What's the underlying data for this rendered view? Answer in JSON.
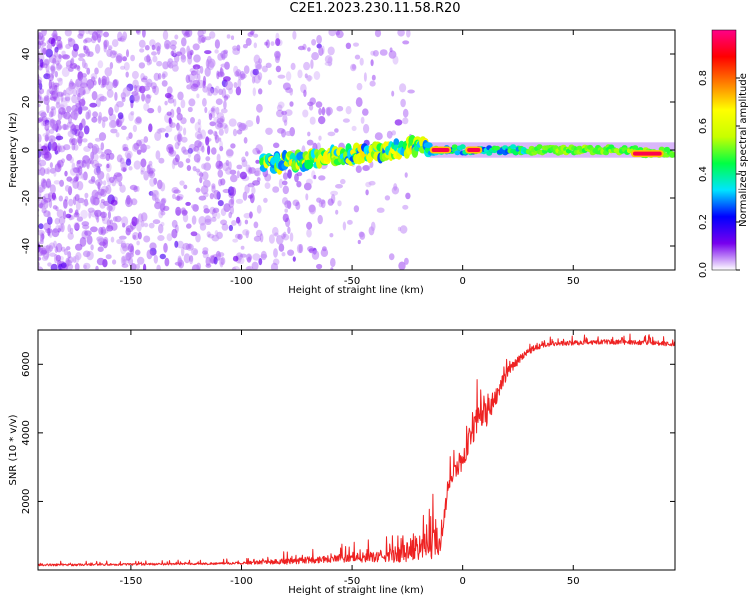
{
  "figure": {
    "title": "C2E1.2023.230.11.58.R20"
  },
  "chart_data": [
    {
      "type": "heatmap",
      "xlabel": "Height of straight line (km)",
      "ylabel": "Frequency (Hz)",
      "xlim": [
        -192,
        96
      ],
      "ylim": [
        -50,
        50
      ],
      "xticks": [
        -150,
        -100,
        -50,
        0,
        50
      ],
      "yticks": [
        -40,
        -20,
        0,
        20,
        40
      ],
      "grid": false,
      "colorbar": {
        "label": "Normalized spectral amplitude",
        "range": [
          0,
          1
        ],
        "ticks": [
          "0.0",
          "0.2",
          "0.4",
          "0.6",
          "0.8"
        ],
        "colors": [
          "#ffffff",
          "#7700ee",
          "#0000ff",
          "#00e5ff",
          "#00ff44",
          "#c8ff00",
          "#ffff00",
          "#ff7f00",
          "#ff0000",
          "#ff0088"
        ]
      },
      "features": [
        {
          "description": "signal band centred near 0 Hz",
          "x_start": -90,
          "x_end": 96,
          "frequency_hz": 0,
          "amplitude": 0.5
        },
        {
          "description": "peak amplitude segments",
          "x_ranges": [
            [
              -14,
              -6
            ],
            [
              2,
              8
            ],
            [
              77,
              90
            ]
          ],
          "frequency_hz": 0,
          "amplitude": 0.95
        },
        {
          "description": "diffuse low-amplitude noise",
          "x_start": -192,
          "x_end": -38,
          "frequency_range": [
            -50,
            50
          ],
          "amplitude": 0.15
        }
      ]
    },
    {
      "type": "line",
      "xlabel": "Height of straight line (km)",
      "ylabel": "SNR (10 * v/v)",
      "xlim": [
        -192,
        96
      ],
      "ylim": [
        0,
        7000
      ],
      "xticks": [
        -150,
        -100,
        -50,
        0,
        50
      ],
      "yticks": [
        2000,
        4000,
        6000
      ],
      "grid": false,
      "series": [
        {
          "color": "#ee2222",
          "x": [
            -192,
            -180,
            -160,
            -140,
            -120,
            -100,
            -90,
            -80,
            -70,
            -60,
            -50,
            -40,
            -30,
            -25,
            -20,
            -15,
            -12,
            -10,
            -8,
            -6,
            -4,
            -2,
            0,
            2,
            4,
            6,
            8,
            10,
            12,
            14,
            16,
            18,
            20,
            22,
            25,
            28,
            32,
            36,
            40,
            50,
            60,
            70,
            80,
            90,
            96
          ],
          "y": [
            150,
            150,
            160,
            170,
            180,
            200,
            230,
            250,
            290,
            330,
            350,
            380,
            450,
            550,
            700,
            750,
            800,
            900,
            1800,
            2500,
            2800,
            3000,
            3200,
            3600,
            4000,
            4300,
            4400,
            4500,
            4700,
            4900,
            5200,
            5500,
            5700,
            5900,
            6100,
            6300,
            6450,
            6550,
            6600,
            6620,
            6650,
            6650,
            6640,
            6620,
            6580
          ],
          "noise_amplitude": [
            60,
            60,
            60,
            60,
            60,
            70,
            120,
            180,
            200,
            220,
            260,
            300,
            500,
            650,
            800,
            900,
            900,
            1000,
            600,
            500,
            500,
            500,
            550,
            650,
            750,
            850,
            850,
            900,
            800,
            600,
            500,
            400,
            350,
            300,
            250,
            200,
            160,
            150,
            140,
            140,
            140,
            140,
            140,
            140,
            140
          ]
        }
      ]
    }
  ]
}
